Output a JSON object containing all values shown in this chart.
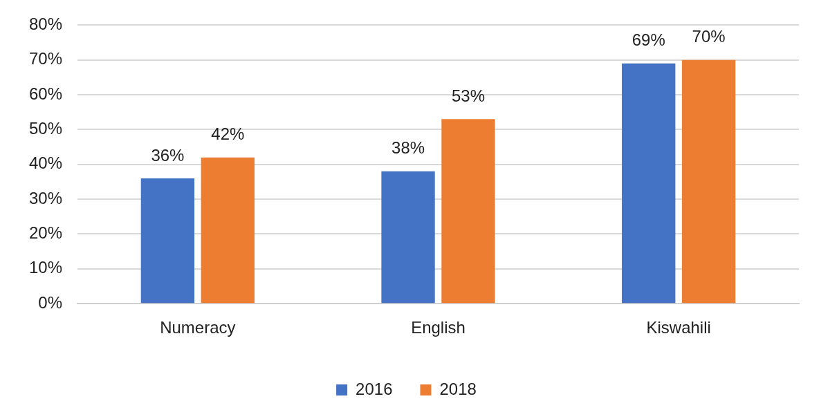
{
  "chart_data": {
    "type": "bar",
    "categories": [
      "Numeracy",
      "English",
      "Kiswahili"
    ],
    "series": [
      {
        "name": "2016",
        "color": "#4472c4",
        "values": [
          36,
          38,
          69
        ],
        "value_labels": [
          "36%",
          "38%",
          "69%"
        ]
      },
      {
        "name": "2018",
        "color": "#ed7d31",
        "values": [
          42,
          53,
          70
        ],
        "value_labels": [
          "42%",
          "53%",
          "70%"
        ]
      }
    ],
    "ylim": [
      0,
      80
    ],
    "yticks": [
      {
        "value": 0,
        "label": "0%"
      },
      {
        "value": 10,
        "label": "10%"
      },
      {
        "value": 20,
        "label": "20%"
      },
      {
        "value": 30,
        "label": "30%"
      },
      {
        "value": 40,
        "label": "40%"
      },
      {
        "value": 50,
        "label": "50%"
      },
      {
        "value": 60,
        "label": "60%"
      },
      {
        "value": 70,
        "label": "70%"
      },
      {
        "value": 80,
        "label": "80%"
      }
    ],
    "grid": "y",
    "legend": "bottom"
  }
}
